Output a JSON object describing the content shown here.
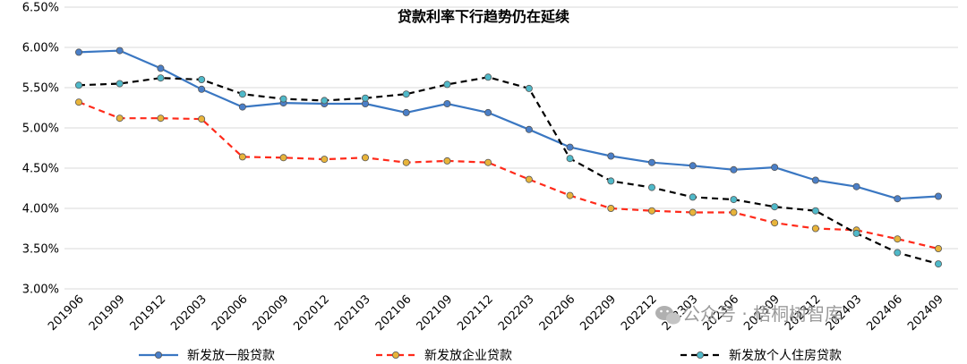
{
  "chart_data": {
    "type": "line",
    "title": "贷款利率下行趋势仍在延续",
    "categories": [
      "201906",
      "201909",
      "201912",
      "202003",
      "202006",
      "202009",
      "202012",
      "202103",
      "202106",
      "202109",
      "202112",
      "202203",
      "202206",
      "202209",
      "202212",
      "202303",
      "202306",
      "202309",
      "202312",
      "202403",
      "202406",
      "202409"
    ],
    "yticks": [
      "3.00%",
      "3.50%",
      "4.00%",
      "4.50%",
      "5.00%",
      "5.50%",
      "6.00%",
      "6.50%"
    ],
    "ylim": [
      3.0,
      6.5
    ],
    "grid": true,
    "legend_position": "bottom",
    "series": [
      {
        "name": "新发放一般贷款",
        "color": "#3a77c2",
        "marker_color": "#4a7fc8",
        "style": "solid",
        "values": [
          5.94,
          5.96,
          5.74,
          5.48,
          5.26,
          5.31,
          5.3,
          5.3,
          5.19,
          5.3,
          5.19,
          4.98,
          4.76,
          4.65,
          4.57,
          4.53,
          4.48,
          4.51,
          4.35,
          4.27,
          4.12,
          4.15
        ]
      },
      {
        "name": "新发放企业贷款",
        "color": "#ff2a1a",
        "marker_color": "#e8b43a",
        "style": "dashed",
        "values": [
          5.32,
          5.12,
          5.12,
          5.11,
          4.64,
          4.63,
          4.61,
          4.63,
          4.57,
          4.59,
          4.57,
          4.36,
          4.16,
          4.0,
          3.97,
          3.95,
          3.95,
          3.82,
          3.75,
          3.73,
          3.62,
          3.5
        ]
      },
      {
        "name": "新发放个人住房贷款",
        "color": "#000000",
        "marker_color": "#4fb9c9",
        "style": "dashed",
        "values": [
          5.53,
          5.55,
          5.62,
          5.6,
          5.42,
          5.36,
          5.34,
          5.37,
          5.42,
          5.54,
          5.63,
          5.49,
          4.62,
          4.34,
          4.26,
          4.14,
          4.11,
          4.02,
          3.97,
          3.69,
          3.45,
          3.31
        ]
      }
    ]
  },
  "watermark": {
    "text": "公众号 · 梧桐树智库",
    "icon": "wechat-icon"
  }
}
